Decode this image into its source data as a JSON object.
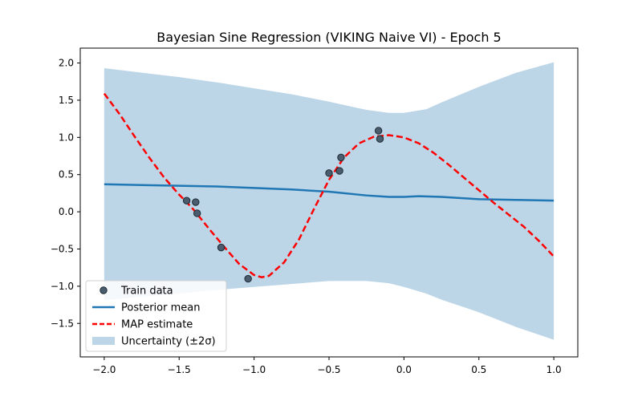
{
  "chart_data": {
    "type": "line",
    "title": "Bayesian Sine Regression (VIKING Naive VI) - Epoch 5",
    "xlabel": "",
    "ylabel": "",
    "xlim": [
      -2.16,
      1.16
    ],
    "ylim": [
      -1.95,
      2.2
    ],
    "xticks": [
      -2.0,
      -1.5,
      -1.0,
      -0.5,
      0.0,
      0.5,
      1.0
    ],
    "xtick_labels": [
      "−2.0",
      "−1.5",
      "−1.0",
      "−0.5",
      "0.0",
      "0.5",
      "1.0"
    ],
    "yticks": [
      -1.5,
      -1.0,
      -0.5,
      0.0,
      0.5,
      1.0,
      1.5,
      2.0
    ],
    "ytick_labels": [
      "−1.5",
      "−1.0",
      "−0.5",
      "0.0",
      "0.5",
      "1.0",
      "1.5",
      "2.0"
    ],
    "grid": false,
    "legend_position": "lower-left",
    "legend": [
      {
        "label": "Train data",
        "kind": "marker",
        "color": "#2f4858"
      },
      {
        "label": "Posterior mean",
        "kind": "line",
        "color": "#1f77b4"
      },
      {
        "label": "MAP estimate",
        "kind": "dashed-line",
        "color": "#ff0000"
      },
      {
        "label": "Uncertainty (±2σ)",
        "kind": "patch",
        "color": "#bcd6e8"
      }
    ],
    "series": [
      {
        "name": "Train data",
        "kind": "scatter",
        "color": "#2f4858",
        "points": [
          [
            -1.45,
            0.15
          ],
          [
            -1.39,
            0.13
          ],
          [
            -1.38,
            -0.02
          ],
          [
            -1.22,
            -0.48
          ],
          [
            -1.04,
            -0.9
          ],
          [
            -0.5,
            0.52
          ],
          [
            -0.43,
            0.55
          ],
          [
            -0.42,
            0.73
          ],
          [
            -0.17,
            1.09
          ],
          [
            -0.16,
            0.98
          ]
        ]
      },
      {
        "name": "Posterior mean",
        "kind": "line",
        "color": "#1f77b4",
        "points": [
          [
            -2.0,
            0.37
          ],
          [
            -1.75,
            0.36
          ],
          [
            -1.5,
            0.35
          ],
          [
            -1.25,
            0.34
          ],
          [
            -1.0,
            0.32
          ],
          [
            -0.75,
            0.3
          ],
          [
            -0.5,
            0.27
          ],
          [
            -0.25,
            0.22
          ],
          [
            -0.1,
            0.2
          ],
          [
            0.0,
            0.2
          ],
          [
            0.1,
            0.21
          ],
          [
            0.25,
            0.2
          ],
          [
            0.5,
            0.17
          ],
          [
            0.75,
            0.16
          ],
          [
            1.0,
            0.15
          ]
        ]
      },
      {
        "name": "MAP estimate",
        "kind": "dashed-line",
        "color": "#ff0000",
        "points": [
          [
            -2.0,
            1.59
          ],
          [
            -1.9,
            1.32
          ],
          [
            -1.8,
            1.02
          ],
          [
            -1.7,
            0.73
          ],
          [
            -1.6,
            0.46
          ],
          [
            -1.5,
            0.23
          ],
          [
            -1.45,
            0.13
          ],
          [
            -1.4,
            0.02
          ],
          [
            -1.3,
            -0.23
          ],
          [
            -1.2,
            -0.47
          ],
          [
            -1.1,
            -0.7
          ],
          [
            -1.0,
            -0.85
          ],
          [
            -0.95,
            -0.88
          ],
          [
            -0.9,
            -0.86
          ],
          [
            -0.8,
            -0.68
          ],
          [
            -0.7,
            -0.37
          ],
          [
            -0.6,
            0.04
          ],
          [
            -0.5,
            0.43
          ],
          [
            -0.4,
            0.73
          ],
          [
            -0.3,
            0.92
          ],
          [
            -0.2,
            1.01
          ],
          [
            -0.1,
            1.03
          ],
          [
            0.0,
            1.0
          ],
          [
            0.1,
            0.92
          ],
          [
            0.2,
            0.79
          ],
          [
            0.3,
            0.63
          ],
          [
            0.4,
            0.46
          ],
          [
            0.5,
            0.29
          ],
          [
            0.6,
            0.12
          ],
          [
            0.7,
            -0.04
          ],
          [
            0.8,
            -0.2
          ],
          [
            0.9,
            -0.39
          ],
          [
            1.0,
            -0.6
          ]
        ]
      },
      {
        "name": "Uncertainty (±2σ)",
        "kind": "band",
        "color": "#bcd6e8",
        "points_upper": [
          [
            -2.0,
            1.93
          ],
          [
            -1.75,
            1.87
          ],
          [
            -1.5,
            1.81
          ],
          [
            -1.25,
            1.74
          ],
          [
            -1.0,
            1.66
          ],
          [
            -0.75,
            1.58
          ],
          [
            -0.5,
            1.48
          ],
          [
            -0.25,
            1.37
          ],
          [
            -0.1,
            1.33
          ],
          [
            0.0,
            1.33
          ],
          [
            0.15,
            1.38
          ],
          [
            0.25,
            1.47
          ],
          [
            0.5,
            1.68
          ],
          [
            0.75,
            1.87
          ],
          [
            1.0,
            2.01
          ]
        ],
        "points_lower": [
          [
            -2.0,
            -1.19
          ],
          [
            -1.75,
            -1.14
          ],
          [
            -1.5,
            -1.1
          ],
          [
            -1.25,
            -1.05
          ],
          [
            -1.0,
            -1.01
          ],
          [
            -0.75,
            -0.97
          ],
          [
            -0.5,
            -0.93
          ],
          [
            -0.25,
            -0.93
          ],
          [
            -0.1,
            -0.96
          ],
          [
            0.0,
            -1.01
          ],
          [
            0.15,
            -1.1
          ],
          [
            0.25,
            -1.18
          ],
          [
            0.5,
            -1.35
          ],
          [
            0.75,
            -1.55
          ],
          [
            1.0,
            -1.72
          ]
        ]
      }
    ]
  }
}
